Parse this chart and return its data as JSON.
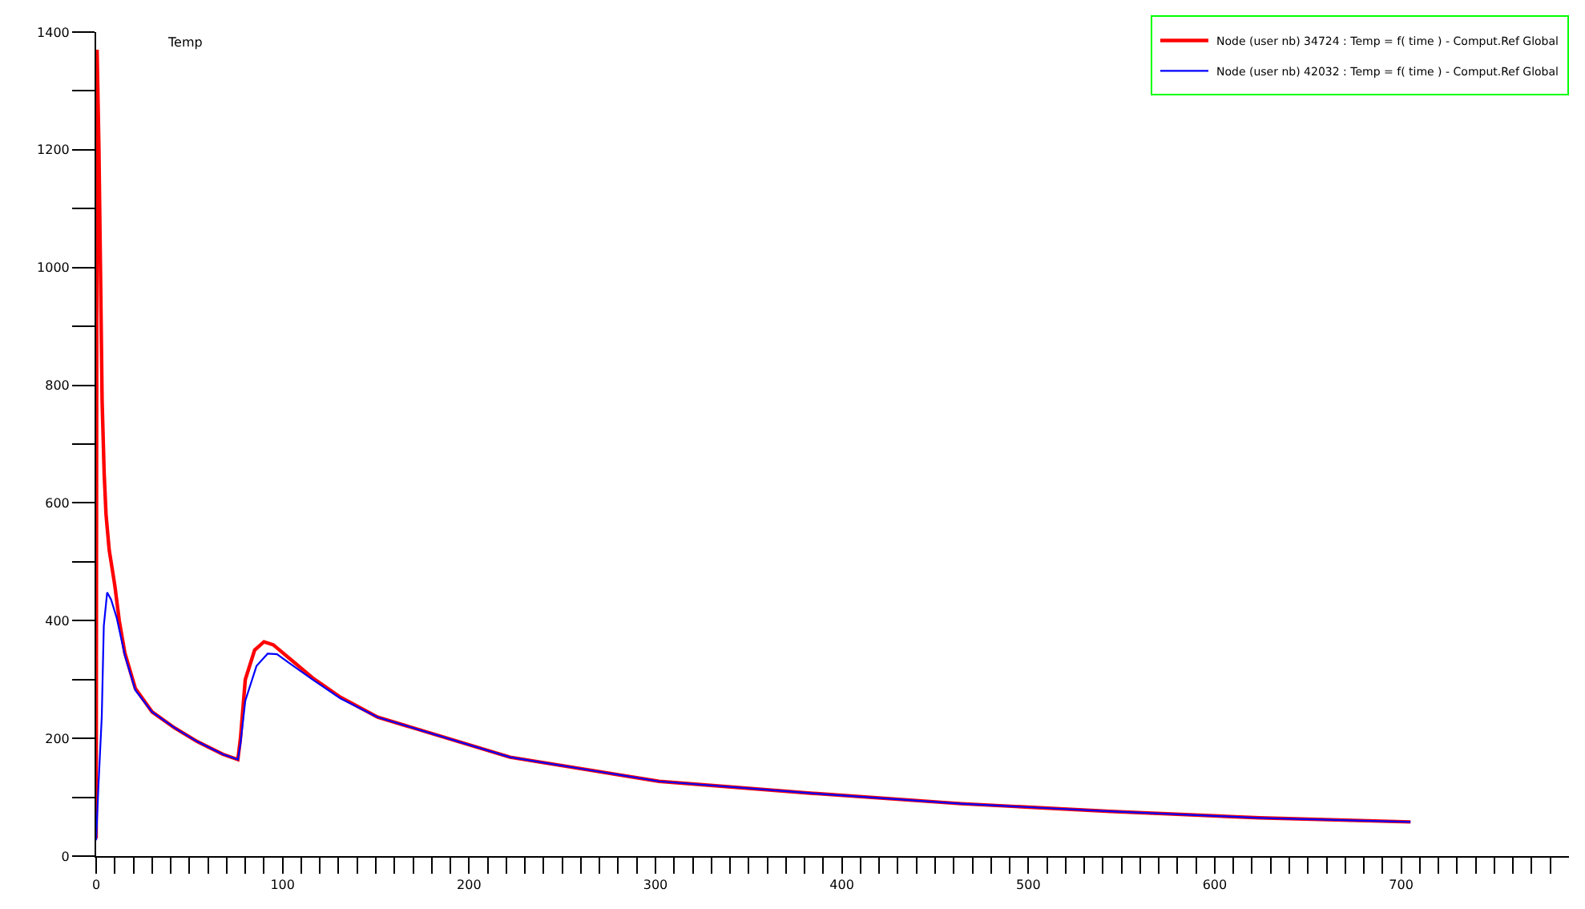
{
  "chart_data": {
    "type": "line",
    "ylabel": "Temp",
    "legend": "top right",
    "marker": "none",
    "line_style": "solid",
    "xlim": [
      0,
      790
    ],
    "ylim": [
      0,
      1400
    ],
    "xticks": [
      0,
      {
        "value": 10,
        "label": null
      },
      {
        "value": 20,
        "label": null
      },
      {
        "value": 30,
        "label": null
      },
      {
        "value": 40,
        "label": null
      },
      {
        "value": 50,
        "label": null
      },
      {
        "value": 60,
        "label": null
      },
      {
        "value": 70,
        "label": null
      },
      {
        "value": 80,
        "label": null
      },
      {
        "value": 90,
        "label": null
      },
      100,
      {
        "value": 110,
        "label": null
      },
      {
        "value": 120,
        "label": null
      },
      {
        "value": 130,
        "label": null
      },
      {
        "value": 140,
        "label": null
      },
      {
        "value": 150,
        "label": null
      },
      {
        "value": 160,
        "label": null
      },
      {
        "value": 170,
        "label": null
      },
      {
        "value": 180,
        "label": null
      },
      {
        "value": 190,
        "label": null
      },
      200,
      {
        "value": 210,
        "label": null
      },
      {
        "value": 220,
        "label": null
      },
      {
        "value": 230,
        "label": null
      },
      {
        "value": 240,
        "label": null
      },
      {
        "value": 250,
        "label": null
      },
      {
        "value": 260,
        "label": null
      },
      {
        "value": 270,
        "label": null
      },
      {
        "value": 280,
        "label": null
      },
      {
        "value": 290,
        "label": null
      },
      300,
      {
        "value": 310,
        "label": null
      },
      {
        "value": 320,
        "label": null
      },
      {
        "value": 330,
        "label": null
      },
      {
        "value": 340,
        "label": null
      },
      {
        "value": 350,
        "label": null
      },
      {
        "value": 360,
        "label": null
      },
      {
        "value": 370,
        "label": null
      },
      {
        "value": 380,
        "label": null
      },
      {
        "value": 390,
        "label": null
      },
      400,
      {
        "value": 410,
        "label": null
      },
      {
        "value": 420,
        "label": null
      },
      {
        "value": 430,
        "label": null
      },
      {
        "value": 440,
        "label": null
      },
      {
        "value": 450,
        "label": null
      },
      {
        "value": 460,
        "label": null
      },
      {
        "value": 470,
        "label": null
      },
      {
        "value": 480,
        "label": null
      },
      {
        "value": 490,
        "label": null
      },
      500,
      {
        "value": 510,
        "label": null
      },
      {
        "value": 520,
        "label": null
      },
      {
        "value": 530,
        "label": null
      },
      {
        "value": 540,
        "label": null
      },
      {
        "value": 550,
        "label": null
      },
      {
        "value": 560,
        "label": null
      },
      {
        "value": 570,
        "label": null
      },
      {
        "value": 580,
        "label": null
      },
      {
        "value": 590,
        "label": null
      },
      600,
      {
        "value": 610,
        "label": null
      },
      {
        "value": 620,
        "label": null
      },
      {
        "value": 630,
        "label": null
      },
      {
        "value": 640,
        "label": null
      },
      {
        "value": 650,
        "label": null
      },
      {
        "value": 660,
        "label": null
      },
      {
        "value": 670,
        "label": null
      },
      {
        "value": 680,
        "label": null
      },
      {
        "value": 690,
        "label": null
      },
      700,
      {
        "value": 710,
        "label": null
      },
      {
        "value": 720,
        "label": null
      },
      {
        "value": 730,
        "label": null
      },
      {
        "value": 740,
        "label": null
      },
      {
        "value": 750,
        "label": null
      },
      {
        "value": 760,
        "label": null
      },
      {
        "value": 770,
        "label": null
      },
      {
        "value": 780,
        "label": null
      }
    ],
    "yticks": [
      0,
      {
        "value": 100,
        "label": null
      },
      200,
      {
        "value": 300,
        "label": null
      },
      400,
      {
        "value": 500,
        "label": null
      },
      600,
      {
        "value": 700,
        "label": null
      },
      800,
      {
        "value": 900,
        "label": null
      },
      1000,
      {
        "value": 1100,
        "label": null
      },
      1200,
      {
        "value": 1300,
        "label": null
      },
      1400
    ],
    "series": [
      {
        "name": "Node (user nb) 34724 : Temp = f( time ) - Comput.Ref Global",
        "color": "#ff0000",
        "x": [
          0,
          0.5,
          1.5,
          2.5,
          3.2,
          4.3,
          5.3,
          7,
          10,
          12.4,
          15.4,
          21,
          30,
          42,
          54,
          68,
          76,
          77.4,
          80,
          85,
          90,
          95,
          104,
          116,
          131,
          151,
          222,
          302,
          383,
          464,
          544,
          624,
          705
        ],
        "values": [
          30,
          1370,
          1200,
          950,
          773,
          650,
          580,
          520,
          460,
          400,
          345,
          285,
          245,
          218,
          195,
          173,
          164,
          200,
          300,
          350,
          364,
          359,
          335,
          303,
          270,
          236,
          168,
          127,
          107,
          89,
          76,
          65,
          58
        ]
      },
      {
        "name": "Node (user nb) 42032 : Temp = f( time ) - Comput.Ref Global",
        "color": "#0000ff",
        "x": [
          0,
          1.2,
          3,
          4.1,
          5.9,
          8,
          11,
          15.4,
          21,
          30,
          42,
          54,
          68,
          76,
          77.4,
          80,
          86,
          92,
          97,
          104,
          116,
          131,
          151,
          222,
          302,
          383,
          464,
          544,
          624,
          705
        ],
        "values": [
          27,
          118,
          236,
          391,
          448,
          436,
          405,
          341,
          282,
          245,
          218,
          195,
          173,
          164,
          191,
          264,
          323,
          344,
          343,
          327,
          300,
          268,
          236,
          168,
          127,
          107,
          89,
          76,
          65,
          58
        ]
      }
    ]
  }
}
